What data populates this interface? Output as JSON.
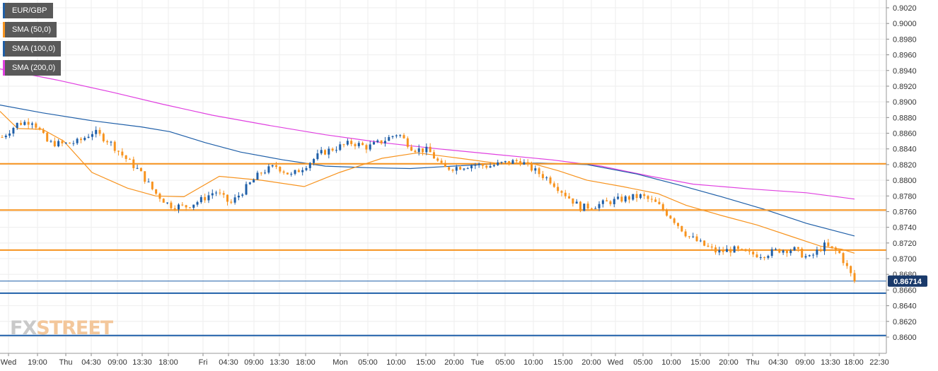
{
  "symbol": "EUR/GBP",
  "indicators": [
    {
      "label": "SMA (50,0)",
      "color": "#f7931e"
    },
    {
      "label": "SMA (100,0)",
      "color": "#1f5fa8"
    },
    {
      "label": "SMA (200,0)",
      "color": "#e040e0"
    }
  ],
  "watermark": {
    "part1": "FX",
    "part2": "STREET"
  },
  "price_badge": "0.86714",
  "colors": {
    "up": "#1f5fa8",
    "down": "#f7931e",
    "grid": "#eeeeee",
    "sma50": "#f7931e",
    "sma100": "#1f5fa8",
    "sma200": "#e040e0",
    "level_orange": "#f7931e",
    "level_blue": "#1f5fa8"
  },
  "chart_data": {
    "type": "line",
    "chart_style": "candlestick",
    "ylim": [
      0.8592,
      0.9028
    ],
    "y_ticks": [
      "0.9020",
      "0.9000",
      "0.8980",
      "0.8960",
      "0.8940",
      "0.8920",
      "0.8900",
      "0.8880",
      "0.8860",
      "0.8840",
      "0.8820",
      "0.8800",
      "0.8780",
      "0.8760",
      "0.8740",
      "0.8720",
      "0.8700",
      "0.8680",
      "0.8660",
      "0.8640",
      "0.8620",
      "0.8600"
    ],
    "x_labels": [
      "Wed",
      "19:00",
      "Thu",
      "04:30",
      "09:00",
      "13:30",
      "18:00",
      "Fri",
      "04:30",
      "09:00",
      "13:30",
      "18:00",
      "Mon",
      "05:00",
      "10:00",
      "15:00",
      "20:00",
      "Tue",
      "05:00",
      "10:00",
      "15:00",
      "20:00",
      "Wed",
      "05:00",
      "10:00",
      "15:00",
      "20:00",
      "Thu",
      "04:30",
      "09:00",
      "13:30",
      "18:00",
      "22:30"
    ],
    "price_path": [
      0.8855,
      0.8872,
      0.8876,
      0.8848,
      0.8846,
      0.8849,
      0.8862,
      0.885,
      0.883,
      0.8812,
      0.8785,
      0.8768,
      0.8766,
      0.8774,
      0.8786,
      0.877,
      0.879,
      0.881,
      0.8818,
      0.8806,
      0.882,
      0.8835,
      0.8842,
      0.8848,
      0.8842,
      0.885,
      0.886,
      0.884,
      0.8838,
      0.8815,
      0.8817,
      0.882,
      0.8818,
      0.8822,
      0.8825,
      0.8812,
      0.88,
      0.8782,
      0.8765,
      0.8768,
      0.8773,
      0.8777,
      0.878,
      0.877,
      0.8752,
      0.873,
      0.8718,
      0.8708,
      0.8712,
      0.8706,
      0.8705,
      0.8711,
      0.8712,
      0.87,
      0.8717,
      0.8707,
      0.8671
    ],
    "candle_count": 228,
    "sma_50": [
      [
        0,
        0.8888
      ],
      [
        25,
        0.8866
      ],
      [
        60,
        0.8865
      ],
      [
        90,
        0.885
      ],
      [
        130,
        0.881
      ],
      [
        180,
        0.879
      ],
      [
        220,
        0.878
      ],
      [
        260,
        0.8779
      ],
      [
        310,
        0.8805
      ],
      [
        370,
        0.88
      ],
      [
        430,
        0.8792
      ],
      [
        480,
        0.881
      ],
      [
        540,
        0.8828
      ],
      [
        590,
        0.8835
      ],
      [
        650,
        0.8828
      ],
      [
        700,
        0.8822
      ],
      [
        750,
        0.8822
      ],
      [
        790,
        0.8812
      ],
      [
        830,
        0.88
      ],
      [
        880,
        0.8792
      ],
      [
        930,
        0.8783
      ],
      [
        970,
        0.8768
      ],
      [
        1020,
        0.8755
      ],
      [
        1070,
        0.8743
      ],
      [
        1120,
        0.8728
      ],
      [
        1160,
        0.8716
      ],
      [
        1190,
        0.8712
      ],
      [
        1208,
        0.8707
      ]
    ],
    "sma_100": [
      [
        0,
        0.8896
      ],
      [
        60,
        0.8886
      ],
      [
        130,
        0.8876
      ],
      [
        200,
        0.8868
      ],
      [
        240,
        0.8862
      ],
      [
        290,
        0.8848
      ],
      [
        340,
        0.8836
      ],
      [
        400,
        0.8826
      ],
      [
        460,
        0.8818
      ],
      [
        520,
        0.8816
      ],
      [
        580,
        0.8815
      ],
      [
        640,
        0.8818
      ],
      [
        700,
        0.8821
      ],
      [
        760,
        0.8822
      ],
      [
        830,
        0.882
      ],
      [
        900,
        0.8808
      ],
      [
        960,
        0.8794
      ],
      [
        1020,
        0.8779
      ],
      [
        1080,
        0.8763
      ],
      [
        1140,
        0.8745
      ],
      [
        1208,
        0.8729
      ]
    ],
    "sma_200": [
      [
        0,
        0.8942
      ],
      [
        80,
        0.8928
      ],
      [
        160,
        0.8912
      ],
      [
        230,
        0.8897
      ],
      [
        300,
        0.8883
      ],
      [
        380,
        0.887
      ],
      [
        460,
        0.8858
      ],
      [
        540,
        0.8848
      ],
      [
        620,
        0.884
      ],
      [
        700,
        0.8833
      ],
      [
        780,
        0.8826
      ],
      [
        850,
        0.8818
      ],
      [
        920,
        0.8805
      ],
      [
        980,
        0.8795
      ],
      [
        1060,
        0.8789
      ],
      [
        1140,
        0.8784
      ],
      [
        1208,
        0.8776
      ]
    ],
    "horizontal_levels": [
      {
        "value": 0.8821,
        "color": "#f7931e"
      },
      {
        "value": 0.8762,
        "color": "#f7931e"
      },
      {
        "value": 0.8711,
        "color": "#f7931e"
      },
      {
        "value": 0.86714,
        "color": "#1f5fa8",
        "thin": true
      },
      {
        "value": 0.8656,
        "color": "#1f5fa8"
      },
      {
        "value": 0.8602,
        "color": "#1f5fa8"
      }
    ]
  }
}
